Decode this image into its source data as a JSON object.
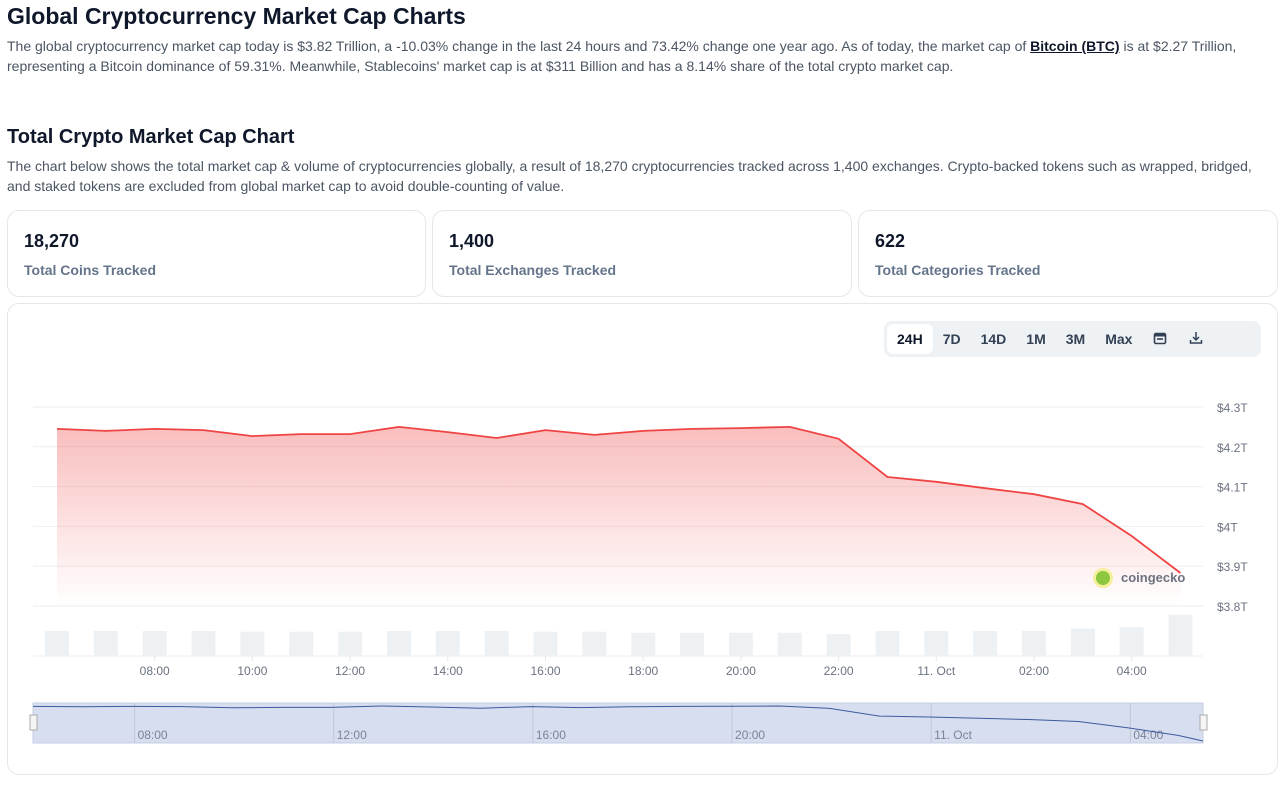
{
  "header": {
    "title": "Global Cryptocurrency Market Cap Charts",
    "intro_1": "The global cryptocurrency market cap today is $3.82 Trillion, a -10.03% change in the last 24 hours and 73.42% change one year ago. As of today, the market cap of ",
    "intro_link": "Bitcoin (BTC)",
    "intro_2": " is at $2.27 Trillion, representing a Bitcoin dominance of 59.31%. Meanwhile, Stablecoins' market cap is at $311 Billion and has a 8.14% share of the total crypto market cap."
  },
  "section": {
    "title": "Total Crypto Market Cap Chart",
    "description": "The chart below shows the total market cap & volume of cryptocurrencies globally, a result of 18,270 cryptocurrencies tracked across 1,400 exchanges. Crypto-backed tokens such as wrapped, bridged, and staked tokens are excluded from global market cap to avoid double-counting of value."
  },
  "stats": [
    {
      "value": "18,270",
      "label": "Total Coins Tracked"
    },
    {
      "value": "1,400",
      "label": "Total Exchanges Tracked"
    },
    {
      "value": "622",
      "label": "Total Categories Tracked"
    }
  ],
  "tabs": [
    "24H",
    "7D",
    "14D",
    "1M",
    "3M",
    "Max"
  ],
  "active_tab": "24H",
  "icons": [
    "calendar-icon",
    "download-icon"
  ],
  "watermark": "coingecko",
  "colors": {
    "line": "#ef4444",
    "navigator": "#d6deef",
    "volume": "#eef1f4"
  },
  "chart_data": {
    "type": "area",
    "y_ticks": [
      "$4.3T",
      "$4.2T",
      "$4.1T",
      "$4T",
      "$3.9T",
      "$3.8T"
    ],
    "ylim": [
      3.8,
      4.3
    ],
    "x_ticks": [
      "08:00",
      "10:00",
      "12:00",
      "14:00",
      "16:00",
      "18:00",
      "20:00",
      "22:00",
      "11. Oct",
      "02:00",
      "04:00"
    ],
    "navigator_ticks": [
      "08:00",
      "12:00",
      "16:00",
      "20:00",
      "11. Oct",
      "04:00"
    ],
    "x_hours": [
      6,
      7,
      8,
      9,
      10,
      11,
      12,
      13,
      14,
      15,
      16,
      17,
      18,
      19,
      20,
      21,
      22,
      23,
      24,
      25,
      26,
      27,
      28,
      29
    ],
    "market_cap_trillions": [
      4.245,
      4.24,
      4.245,
      4.242,
      4.227,
      4.232,
      4.232,
      4.25,
      4.237,
      4.222,
      4.242,
      4.23,
      4.24,
      4.245,
      4.247,
      4.25,
      4.22,
      4.124,
      4.112,
      4.096,
      4.081,
      4.056,
      3.976,
      3.883
    ],
    "volume_relative": [
      1,
      1,
      1,
      1,
      0.97,
      0.97,
      0.97,
      1,
      1,
      1,
      0.97,
      0.97,
      0.93,
      0.93,
      0.93,
      0.93,
      0.88,
      1,
      1,
      1,
      1,
      1.1,
      1.15,
      1.65
    ]
  }
}
